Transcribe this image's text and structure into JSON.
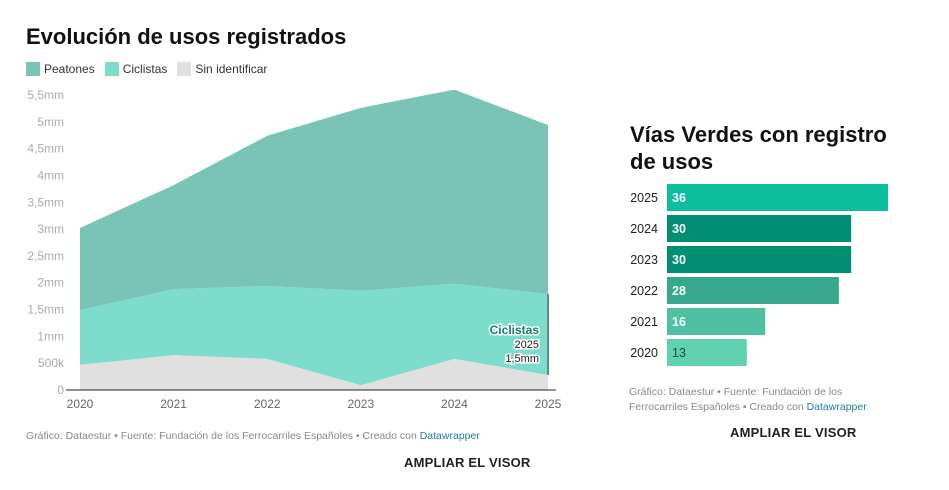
{
  "chart_data": [
    {
      "type": "area",
      "stacked": true,
      "title": "Evolución de usos registrados",
      "x": [
        "2020",
        "2021",
        "2022",
        "2023",
        "2024",
        "2025"
      ],
      "ylim": [
        0,
        5.5
      ],
      "yticks": [
        {
          "v": 0,
          "l": "0"
        },
        {
          "v": 0.5,
          "l": "500k"
        },
        {
          "v": 1,
          "l": "1mm"
        },
        {
          "v": 1.5,
          "l": "1,5mm"
        },
        {
          "v": 2,
          "l": "2mm"
        },
        {
          "v": 2.5,
          "l": "2,5mm"
        },
        {
          "v": 3,
          "l": "3mm"
        },
        {
          "v": 3.5,
          "l": "3,5mm"
        },
        {
          "v": 4,
          "l": "4mm"
        },
        {
          "v": 4.5,
          "l": "4,5mm"
        },
        {
          "v": 5,
          "l": "5mm"
        },
        {
          "v": 5.5,
          "l": "5,5mm"
        }
      ],
      "unit": "millones",
      "grid": false,
      "legend_position": "top-left",
      "series": [
        {
          "name": "Sin identificar",
          "color": "#e0e0e0",
          "values": [
            0.47,
            0.65,
            0.58,
            0.09,
            0.58,
            0.28
          ]
        },
        {
          "name": "Ciclistas",
          "color": "#7ddccb",
          "values": [
            1.02,
            1.23,
            1.36,
            1.76,
            1.4,
            1.51
          ]
        },
        {
          "name": "Peatones",
          "color": "#79c4b6",
          "values": [
            1.53,
            1.94,
            2.8,
            3.41,
            3.62,
            3.15
          ]
        }
      ],
      "annotation": {
        "series": "Ciclistas",
        "year": "2025",
        "value": "1,5mm"
      }
    },
    {
      "type": "bar",
      "orientation": "horizontal",
      "title": "Vías Verdes con registro de usos",
      "categories": [
        "2025",
        "2024",
        "2023",
        "2022",
        "2021",
        "2020"
      ],
      "values": [
        36,
        30,
        30,
        28,
        16,
        13
      ],
      "colors": [
        "#0bbf9f",
        "#008e74",
        "#008e74",
        "#35a88d",
        "#4fc0a2",
        "#5fd1b0"
      ],
      "label_colors": [
        "#fff",
        "#fff",
        "#fff",
        "#fff",
        "#fff",
        "#1a4a3e"
      ],
      "xlim": [
        0,
        36
      ]
    }
  ],
  "left": {
    "credit": "Gráfico: Dataestur • Fuente: Fundación de los Ferrocarriles Españoles • Creado con ",
    "link": "Datawrapper",
    "button": "AMPLIAR EL VISOR"
  },
  "right": {
    "credit": "Gráfico: Dataestur • Fuente: Fundación de los Ferrocarriles Españoles • Creado con ",
    "link": "Datawrapper",
    "button": "AMPLIAR EL VISOR"
  }
}
